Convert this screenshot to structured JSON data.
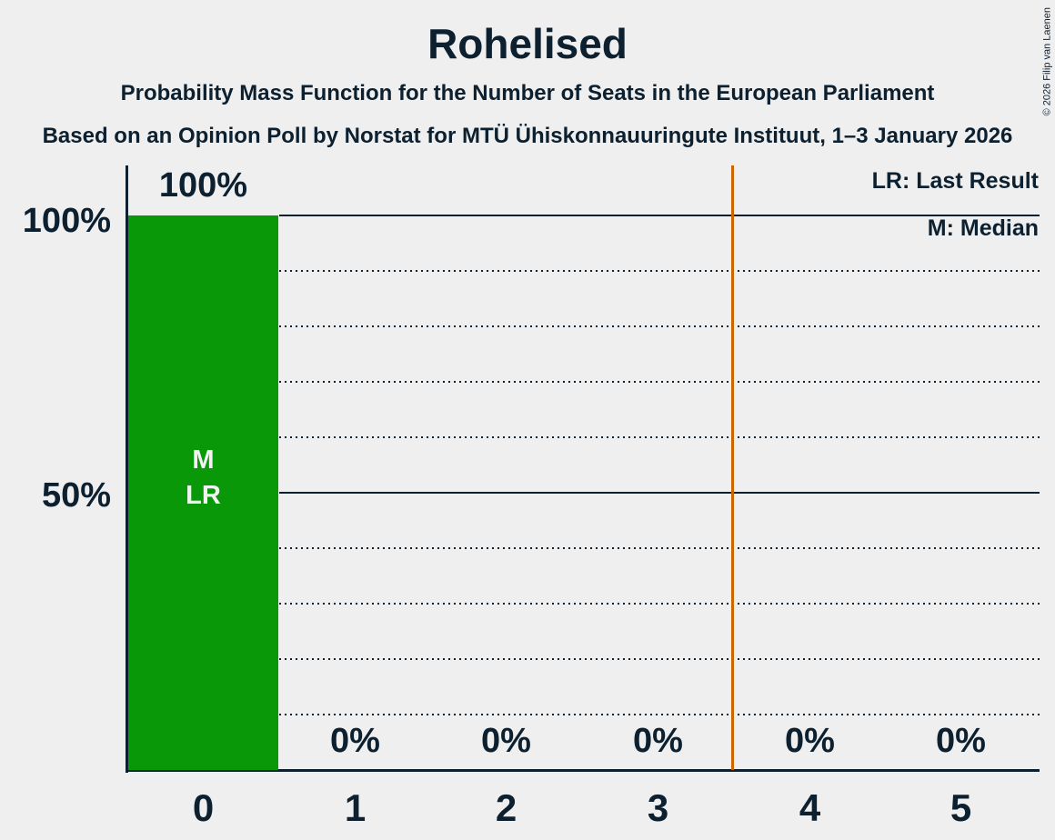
{
  "page": {
    "background_color": "#EFEFEF",
    "text_color": "#0D2030"
  },
  "header": {
    "title": "Rohelised",
    "subtitle": "Probability Mass Function for the Number of Seats in the European Parliament",
    "source": "Based on an Opinion Poll by Norstat for MTÜ Ühiskonnauuringute Instituut, 1–3 January 2026",
    "copyright": "© 2026 Filip van Laenen"
  },
  "legend": {
    "last_result": "LR: Last Result",
    "median": "M: Median"
  },
  "chart_data": {
    "type": "bar",
    "title": "Rohelised",
    "categories": [
      "0",
      "1",
      "2",
      "3",
      "4",
      "5"
    ],
    "values": [
      100,
      0,
      0,
      0,
      0,
      0
    ],
    "value_labels": [
      "100%",
      "0%",
      "0%",
      "0%",
      "0%",
      "0%"
    ],
    "y_ticks": [
      "100%",
      "50%"
    ],
    "ylim": [
      0,
      100
    ],
    "gridlines": {
      "dotted_every_percent": 10,
      "solid_at_percent": [
        50,
        100
      ]
    },
    "bar_color": "#089808",
    "bar_annotations": [
      "M",
      "LR"
    ],
    "median_seats": 0,
    "last_result_seats": 0,
    "reference_line": {
      "position_seats": 3.5,
      "color": "#CC6600"
    },
    "legend": [
      "LR: Last Result",
      "M: Median"
    ],
    "legend_position": "top-right"
  }
}
